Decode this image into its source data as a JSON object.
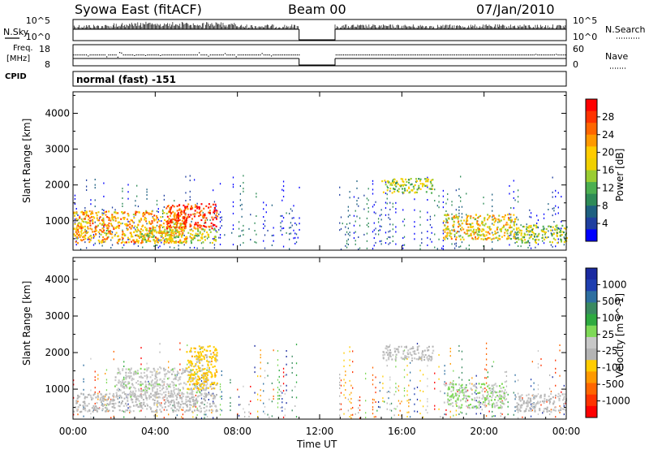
{
  "header": {
    "station": "Syowa East (fitACF)",
    "beam": "Beam 00",
    "date": "07/Jan/2010"
  },
  "top_panels": {
    "nsky_label": "N.Sky",
    "nsky_ticks": [
      "10^5",
      "10^0"
    ],
    "nsearch_label": "N.Search",
    "nsearch_ticks": [
      "10^5",
      "10^0"
    ],
    "freq_label_1": "Freq.",
    "freq_label_2": "[MHz]",
    "freq_ticks": [
      "18",
      "8"
    ],
    "nave_label": "Nave",
    "nave_ticks": [
      "60",
      "0"
    ],
    "cpid_label": "CPID",
    "cpid_value": "normal (fast) -151"
  },
  "power_colorbar": {
    "title": "Power [dB]",
    "ticks": [
      "28",
      "24",
      "20",
      "16",
      "12",
      "8",
      "4"
    ],
    "colors": [
      "#ff0000",
      "#ff3300",
      "#ff6600",
      "#ff9900",
      "#ffcc00",
      "#f0d000",
      "#9acd32",
      "#4caf50",
      "#2e8b57",
      "#1e6080",
      "#1f3f9f",
      "#0000ff"
    ]
  },
  "velocity_colorbar": {
    "title": "Velocity [m s^-1]",
    "ticks": [
      "1000",
      "500",
      "100",
      "25",
      "-25",
      "-100",
      "-500",
      "-1000"
    ],
    "colors": [
      "#1a2aa0",
      "#1f3fb0",
      "#2e6fa0",
      "#3a8a60",
      "#2eaa40",
      "#7ed957",
      "#c8c8c8",
      "#b4b4b4",
      "#ffcc00",
      "#ff9900",
      "#ff6600",
      "#ff3300",
      "#ff0000"
    ]
  },
  "axes": {
    "ylabel": "Slant Range [km]",
    "yticks": [
      "4000",
      "3000",
      "2000",
      "1000"
    ],
    "xticks": [
      "00:00",
      "04:00",
      "08:00",
      "12:00",
      "16:00",
      "20:00",
      "00:00"
    ],
    "xlabel": "Time UT"
  },
  "chart_data": [
    {
      "type": "heatmap",
      "title": "Power [dB]",
      "xlabel": "Time UT",
      "ylabel": "Slant Range [km]",
      "x_range_hours": [
        0,
        24
      ],
      "ylim": [
        180,
        4600
      ],
      "color_range_db": [
        0,
        30
      ],
      "data_gap_hours": [
        11,
        12.75
      ],
      "scatter_regions": [
        {
          "time_start_h": 0.0,
          "time_end_h": 5.5,
          "range_km": [
            400,
            1300
          ],
          "power_db": 20
        },
        {
          "time_start_h": 4.5,
          "time_end_h": 7.0,
          "range_km": [
            800,
            1500
          ],
          "power_db": 26
        },
        {
          "time_start_h": 3.0,
          "time_end_h": 7.0,
          "range_km": [
            400,
            800
          ],
          "power_db": 16
        },
        {
          "time_start_h": 15.0,
          "time_end_h": 17.5,
          "range_km": [
            1800,
            2200
          ],
          "power_db": 14
        },
        {
          "time_start_h": 18.0,
          "time_end_h": 21.5,
          "range_km": [
            500,
            1200
          ],
          "power_db": 18
        },
        {
          "time_start_h": 21.5,
          "time_end_h": 24.0,
          "range_km": [
            400,
            900
          ],
          "power_db": 14
        }
      ]
    },
    {
      "type": "heatmap",
      "title": "Velocity [m s^-1]",
      "xlabel": "Time UT",
      "ylabel": "Slant Range [km]",
      "x_range_hours": [
        0,
        24
      ],
      "ylim": [
        180,
        4600
      ],
      "color_range_ms": [
        -1000,
        1000
      ],
      "data_gap_hours": [
        11,
        12.75
      ],
      "scatter_regions": [
        {
          "time_start_h": 0.0,
          "time_end_h": 7.0,
          "range_km": [
            400,
            900
          ],
          "velocity_ms": -100
        },
        {
          "time_start_h": 2.0,
          "time_end_h": 6.5,
          "range_km": [
            800,
            1600
          ],
          "velocity_ms": 0
        },
        {
          "time_start_h": 5.5,
          "time_end_h": 7.0,
          "range_km": [
            1000,
            2200
          ],
          "velocity_ms": -300
        },
        {
          "time_start_h": 15.0,
          "time_end_h": 17.5,
          "range_km": [
            1800,
            2200
          ],
          "velocity_ms": -60
        },
        {
          "time_start_h": 18.0,
          "time_end_h": 21.0,
          "range_km": [
            500,
            1200
          ],
          "velocity_ms": 60
        },
        {
          "time_start_h": 21.5,
          "time_end_h": 24.0,
          "range_km": [
            400,
            900
          ],
          "velocity_ms": -80
        }
      ]
    }
  ]
}
